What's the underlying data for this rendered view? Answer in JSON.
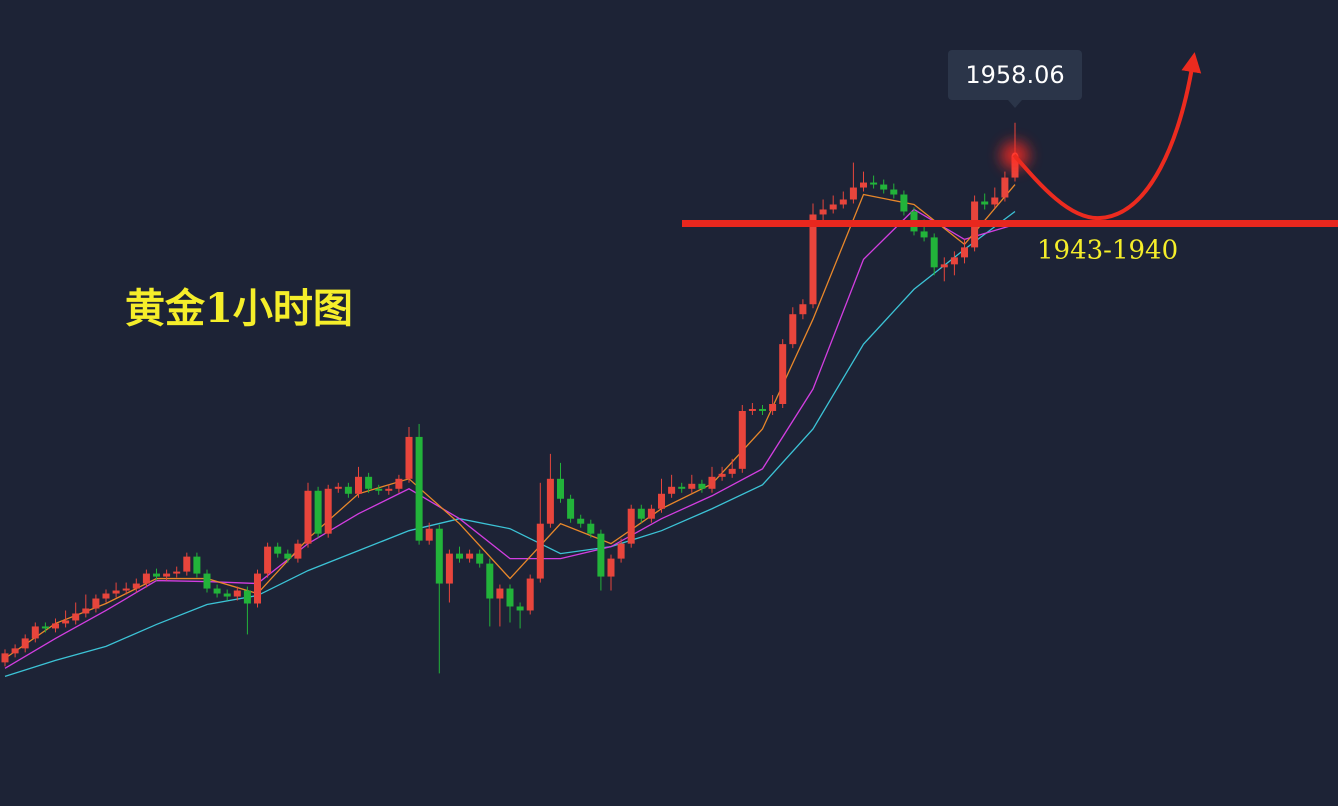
{
  "chart_data": {
    "type": "candlestick",
    "title": "黄金1小时图",
    "ylim": [
      1795,
      1997
    ],
    "up_color": "#e8453c",
    "down_color": "#22b33a",
    "candles": [
      [
        1831,
        1834.25,
        1830,
        1833.25
      ],
      [
        1833.25,
        1835.5,
        1832.25,
        1834.5
      ],
      [
        1834.5,
        1838,
        1833.5,
        1837
      ],
      [
        1837,
        1841,
        1836,
        1840
      ],
      [
        1840,
        1841,
        1838.5,
        1839.5
      ],
      [
        1839.5,
        1842,
        1838.5,
        1840.75
      ],
      [
        1840.75,
        1844,
        1839.75,
        1841.5
      ],
      [
        1841.5,
        1846,
        1840.5,
        1843.25
      ],
      [
        1843.25,
        1848,
        1842.25,
        1844.5
      ],
      [
        1844.5,
        1848,
        1843.5,
        1847
      ],
      [
        1847,
        1849.25,
        1846,
        1848.25
      ],
      [
        1848.25,
        1851,
        1847.25,
        1849
      ],
      [
        1849,
        1851,
        1848,
        1849.5
      ],
      [
        1849.5,
        1852,
        1848.5,
        1850.75
      ],
      [
        1850.75,
        1854.25,
        1849.75,
        1853.25
      ],
      [
        1853.25,
        1854.5,
        1851.5,
        1852.5
      ],
      [
        1852.5,
        1854.25,
        1851.5,
        1853.25
      ],
      [
        1853.25,
        1855,
        1852.25,
        1853.75
      ],
      [
        1853.75,
        1858.5,
        1852.75,
        1857.5
      ],
      [
        1857.5,
        1858.5,
        1852.25,
        1853.25
      ],
      [
        1853.25,
        1854.25,
        1848.5,
        1849.5
      ],
      [
        1849.5,
        1850.5,
        1847.25,
        1848.25
      ],
      [
        1848.25,
        1849.25,
        1846.5,
        1847.5
      ],
      [
        1847.5,
        1850,
        1846.5,
        1849
      ],
      [
        1849,
        1850,
        1838,
        1845.75
      ],
      [
        1845.75,
        1854.25,
        1844.75,
        1853.25
      ],
      [
        1853.25,
        1861,
        1852.25,
        1860
      ],
      [
        1860,
        1861,
        1857.25,
        1858.25
      ],
      [
        1858.25,
        1859.25,
        1856,
        1857
      ],
      [
        1857,
        1861.75,
        1856,
        1860.75
      ],
      [
        1860.75,
        1876,
        1859.75,
        1874
      ],
      [
        1874,
        1875,
        1862.25,
        1863.25
      ],
      [
        1863.25,
        1875.5,
        1862.25,
        1874.5
      ],
      [
        1874.5,
        1876,
        1873.5,
        1875
      ],
      [
        1875,
        1876,
        1872.25,
        1873.25
      ],
      [
        1873.25,
        1880,
        1872.25,
        1877.5
      ],
      [
        1877.5,
        1878.5,
        1873.5,
        1874.5
      ],
      [
        1874.5,
        1875.5,
        1873,
        1874
      ],
      [
        1874,
        1875.5,
        1873,
        1874.5
      ],
      [
        1874.5,
        1878,
        1873.5,
        1877
      ],
      [
        1877,
        1890,
        1876,
        1887.5
      ],
      [
        1887.5,
        1890.75,
        1860.5,
        1861.5
      ],
      [
        1861.5,
        1866,
        1860.5,
        1864.5
      ],
      [
        1864.5,
        1865.5,
        1828.25,
        1850.75
      ],
      [
        1850.75,
        1859.25,
        1846,
        1858.25
      ],
      [
        1858.25,
        1860,
        1856,
        1857
      ],
      [
        1857,
        1859.25,
        1856,
        1858.25
      ],
      [
        1858.25,
        1859.25,
        1854.75,
        1855.75
      ],
      [
        1855.75,
        1857,
        1840,
        1847
      ],
      [
        1847,
        1850.5,
        1840,
        1849.5
      ],
      [
        1849.5,
        1850.5,
        1841,
        1845
      ],
      [
        1845,
        1846,
        1839.5,
        1844
      ],
      [
        1844,
        1853,
        1843,
        1852
      ],
      [
        1852,
        1876,
        1851,
        1865.75
      ],
      [
        1865.75,
        1883.25,
        1864.75,
        1877
      ],
      [
        1877,
        1881,
        1871,
        1872
      ],
      [
        1872,
        1873,
        1866,
        1867
      ],
      [
        1867,
        1868,
        1864.75,
        1865.75
      ],
      [
        1865.75,
        1866.75,
        1862.25,
        1863.25
      ],
      [
        1863.25,
        1864.25,
        1849,
        1852.5
      ],
      [
        1852.5,
        1858,
        1849,
        1857
      ],
      [
        1857,
        1862,
        1856,
        1860.75
      ],
      [
        1860.75,
        1870.5,
        1859.75,
        1869.5
      ],
      [
        1869.5,
        1870.5,
        1866,
        1867
      ],
      [
        1867,
        1870.5,
        1866,
        1869.5
      ],
      [
        1869.5,
        1877,
        1868.5,
        1873.25
      ],
      [
        1873.25,
        1878,
        1872.25,
        1875
      ],
      [
        1875,
        1876,
        1873.5,
        1874.5
      ],
      [
        1874.5,
        1878,
        1873.5,
        1875.75
      ],
      [
        1875.75,
        1876.75,
        1873.5,
        1874.5
      ],
      [
        1874.5,
        1880,
        1873.5,
        1877.5
      ],
      [
        1877.5,
        1880,
        1876.5,
        1878.25
      ],
      [
        1878.25,
        1882,
        1877.25,
        1879.5
      ],
      [
        1879.5,
        1895.5,
        1878.5,
        1894
      ],
      [
        1894,
        1896,
        1893,
        1894.5
      ],
      [
        1894.5,
        1895.5,
        1893,
        1894
      ],
      [
        1894,
        1898,
        1893,
        1895.75
      ],
      [
        1895.75,
        1912,
        1894.75,
        1910.75
      ],
      [
        1910.75,
        1920,
        1909.75,
        1918.25
      ],
      [
        1918.25,
        1922,
        1917,
        1920.75
      ],
      [
        1920.75,
        1946,
        1919.75,
        1943.25
      ],
      [
        1943.25,
        1947,
        1941,
        1944.5
      ],
      [
        1944.5,
        1948,
        1943.5,
        1945.75
      ],
      [
        1945.75,
        1949,
        1944.75,
        1947
      ],
      [
        1947,
        1956.25,
        1946,
        1950
      ],
      [
        1950,
        1954,
        1949,
        1951.25
      ],
      [
        1951.25,
        1953,
        1949.75,
        1950.75
      ],
      [
        1950.75,
        1952,
        1948.5,
        1949.5
      ],
      [
        1949.5,
        1951,
        1947.25,
        1948.25
      ],
      [
        1948.25,
        1949.25,
        1943,
        1944
      ],
      [
        1944,
        1945,
        1938,
        1939
      ],
      [
        1939,
        1942,
        1936.5,
        1937.5
      ],
      [
        1937.5,
        1938.5,
        1928,
        1930
      ],
      [
        1930,
        1932.5,
        1926.5,
        1930.75
      ],
      [
        1930.75,
        1934,
        1928,
        1932.5
      ],
      [
        1932.5,
        1937,
        1931,
        1935
      ],
      [
        1935,
        1948,
        1934,
        1946.5
      ],
      [
        1946.5,
        1948.5,
        1944.5,
        1945.75
      ],
      [
        1945.75,
        1950,
        1944.75,
        1947.5
      ],
      [
        1947.5,
        1954,
        1946.5,
        1952.5
      ],
      [
        1952.5,
        1966.25,
        1951.5,
        1958.06
      ]
    ],
    "lines": {
      "x": [
        0,
        5,
        10,
        15,
        20,
        25,
        30,
        35,
        40,
        45,
        50,
        55,
        60,
        65,
        70,
        75,
        80,
        85,
        90,
        95,
        100
      ],
      "series": [
        {
          "color": "#3cc3d6",
          "values": [
            1827.5,
            1831.5,
            1835,
            1840.5,
            1845.5,
            1847.75,
            1854,
            1859,
            1864,
            1867,
            1864.5,
            1858.25,
            1860,
            1864,
            1869.5,
            1875.5,
            1889.5,
            1910.75,
            1924.5,
            1934.5,
            1944
          ]
        },
        {
          "color": "#d23ee0",
          "values": [
            1829.5,
            1837,
            1844,
            1851.5,
            1851.25,
            1850.75,
            1860.75,
            1868.25,
            1874.5,
            1867,
            1857,
            1857,
            1860,
            1867,
            1872.75,
            1879.5,
            1899.5,
            1932,
            1944.5,
            1937,
            1940.75
          ]
        },
        {
          "color": "#e8872a",
          "values": [
            1832,
            1840.75,
            1845.75,
            1852,
            1852,
            1848.25,
            1862,
            1873.25,
            1877,
            1865.75,
            1852,
            1865.75,
            1860.75,
            1869.5,
            1875.75,
            1889.5,
            1917,
            1948.25,
            1945.75,
            1935.75,
            1950.75
          ]
        }
      ]
    },
    "support": {
      "value": 1941,
      "label": "1943-1940",
      "color": "#e8271e"
    }
  }
}
